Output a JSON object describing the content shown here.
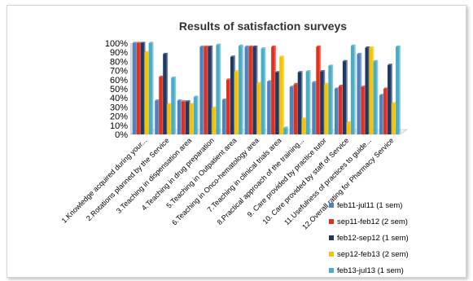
{
  "chart_data": {
    "type": "bar",
    "title": "Results of satisfaction surveys",
    "xlabel": "",
    "ylabel": "",
    "ylim": [
      0,
      100
    ],
    "y_ticks": [
      "0%",
      "10%",
      "20%",
      "30%",
      "40%",
      "50%",
      "60%",
      "70%",
      "80%",
      "90%",
      "100%"
    ],
    "grid": false,
    "legend_position": "right",
    "categories": [
      "1.Knowledge acquired during your...",
      "2.Rotations planned by the Service",
      "3.Teaching in dispensation area",
      "4.Teaching in drug preparation",
      "5.Teaching in Outpatient area",
      "6.Teaching in Onco-hematology area",
      "7.Teaching in clinical trials area",
      "8.Practical approach of the training...",
      "9. Care provided by practice tutor",
      "10. Care provided by staff of Service",
      "11.Usefulness of practices to guide...",
      "12.Overall rating for Pharmacy Service"
    ],
    "series": [
      {
        "name": "feb11-jul11 (1 sem)",
        "color": "#4f81bd",
        "values": [
          100,
          37,
          37,
          96,
          38,
          96,
          58,
          52,
          57,
          50,
          88,
          43
        ]
      },
      {
        "name": "sep11-feb12 (2 sem)",
        "color": "#e0301e",
        "values": [
          100,
          63,
          36,
          96,
          60,
          96,
          96,
          55,
          96,
          53,
          52,
          50
        ]
      },
      {
        "name": "feb12-sep12 (1 sem)",
        "color": "#1f3864",
        "values": [
          100,
          88,
          36,
          96,
          85,
          96,
          68,
          68,
          69,
          80,
          95,
          76
        ]
      },
      {
        "name": "sep12-feb13 (2 sem)",
        "color": "#f5c400",
        "values": [
          90,
          33,
          33,
          29,
          69,
          56,
          85,
          17,
          55,
          13,
          95,
          34
        ]
      },
      {
        "name": "feb13-jul13 (1 sem)",
        "color": "#4bacc6",
        "values": [
          100,
          62,
          41,
          98,
          97,
          94,
          7,
          69,
          75,
          97,
          80,
          96
        ]
      }
    ]
  }
}
